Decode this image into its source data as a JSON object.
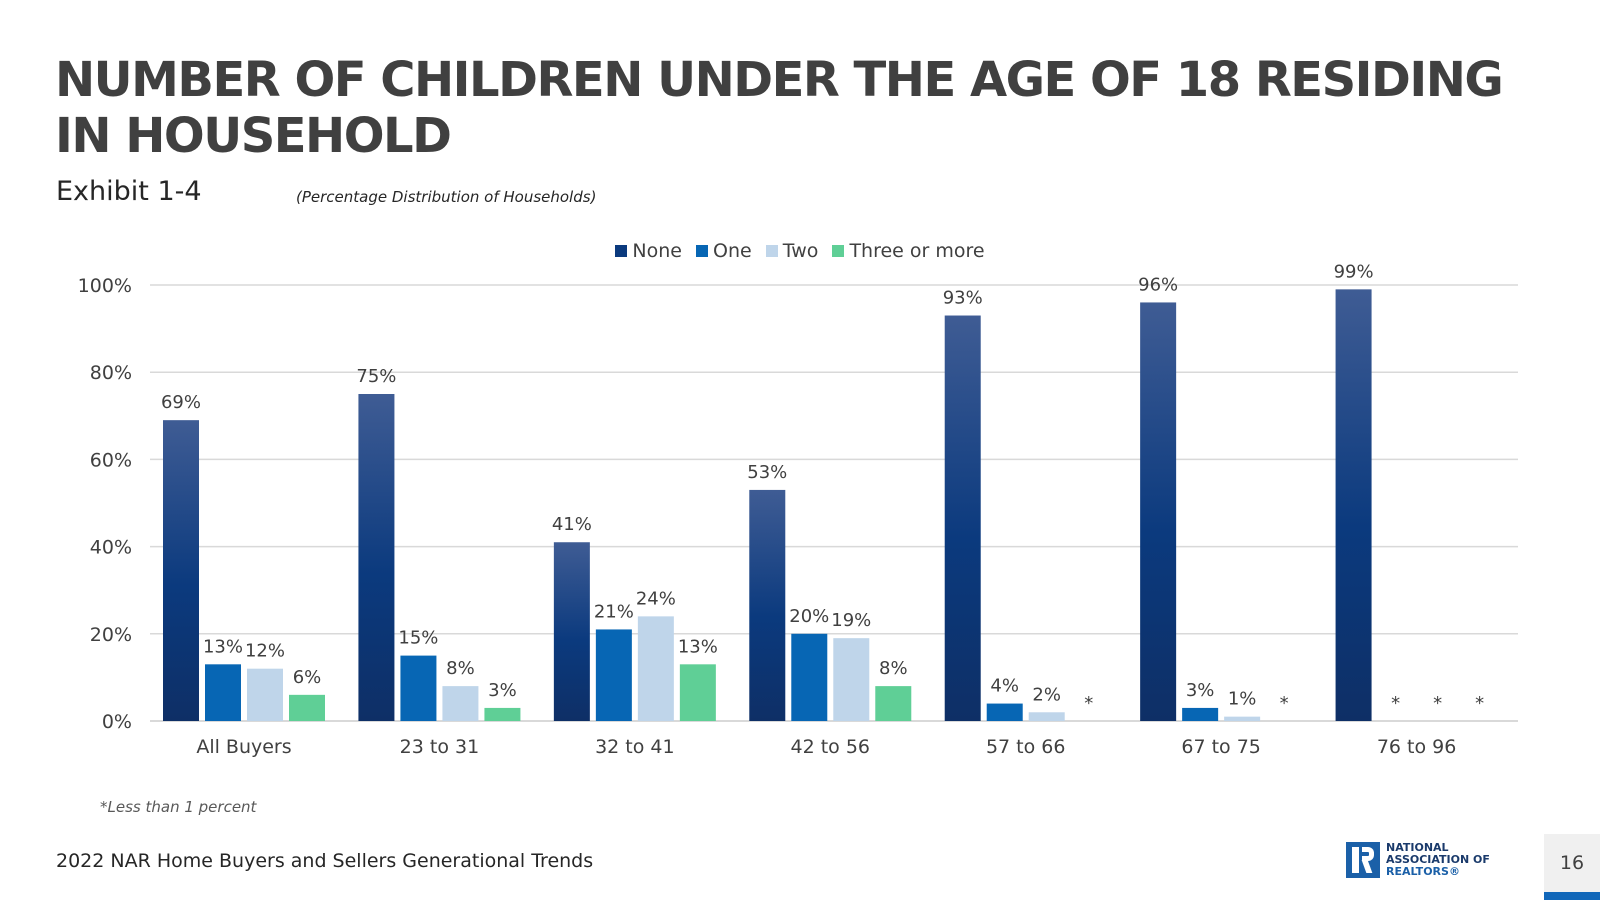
{
  "title": "NUMBER OF CHILDREN UNDER THE AGE OF 18 RESIDING IN HOUSEHOLD",
  "exhibit": "Exhibit 1-4",
  "subtitle": "(Percentage Distribution of Households)",
  "footnote": "*Less than 1 percent",
  "source": "2022 NAR Home Buyers and Sellers Generational Trends",
  "page_number": "16",
  "logo": {
    "line1": "NATIONAL",
    "line2": "ASSOCIATION OF",
    "line3": "REALTORS",
    "reg": "®"
  },
  "colors": {
    "none": "#0b3a7e",
    "none_top": "#3f5c94",
    "one": "#0766b4",
    "two": "#bfd5ea",
    "three": "#5fcf96",
    "axis": "#d9d9d9"
  },
  "chart_data": {
    "type": "bar",
    "categories": [
      "All Buyers",
      "23 to 31",
      "32 to 41",
      "42 to 56",
      "57 to 66",
      "67 to 75",
      "76 to 96"
    ],
    "ylim": [
      0,
      100
    ],
    "yticks": [
      "0%",
      "20%",
      "40%",
      "60%",
      "80%",
      "100%"
    ],
    "legend_position": "top-center",
    "grid": true,
    "series": [
      {
        "name": "None",
        "values": [
          69,
          75,
          41,
          53,
          93,
          96,
          99
        ],
        "labels": [
          "69%",
          "75%",
          "41%",
          "53%",
          "93%",
          "96%",
          "99%"
        ]
      },
      {
        "name": "One",
        "values": [
          13,
          15,
          21,
          20,
          4,
          3,
          0
        ],
        "labels": [
          "13%",
          "15%",
          "21%",
          "20%",
          "4%",
          "3%",
          "*"
        ]
      },
      {
        "name": "Two",
        "values": [
          12,
          8,
          24,
          19,
          2,
          1,
          0
        ],
        "labels": [
          "12%",
          "8%",
          "24%",
          "19%",
          "2%",
          "1%",
          "*"
        ]
      },
      {
        "name": "Three or more",
        "values": [
          6,
          3,
          13,
          8,
          0,
          0,
          0
        ],
        "labels": [
          "6%",
          "3%",
          "13%",
          "8%",
          "*",
          "*",
          "*"
        ]
      }
    ]
  }
}
